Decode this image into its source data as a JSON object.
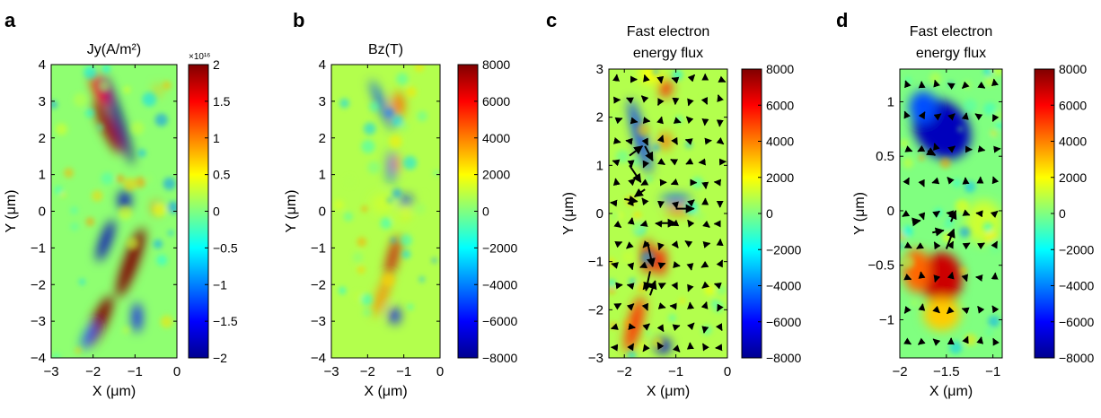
{
  "colorbar_colors": [
    "#00008f",
    "#0000ff",
    "#0080ff",
    "#00ffff",
    "#80ff80",
    "#ffff00",
    "#ff8000",
    "#ff0000",
    "#800000"
  ],
  "chart_data": [
    {
      "type": "heatmap",
      "panel_letter": "a",
      "title": "Jy(A/m²)",
      "xlabel": "X (μm)",
      "ylabel": "Y (μm)",
      "xlim": [
        -3,
        0
      ],
      "ylim": [
        -4,
        4
      ],
      "xticks": [
        "-3",
        "-2",
        "-1",
        "0"
      ],
      "yticks": [
        "-4",
        "-3",
        "-2",
        "-1",
        "0",
        "1",
        "2",
        "3",
        "4"
      ],
      "colorbar": {
        "exponent_label": "×10¹⁶",
        "range": [
          -2,
          2
        ],
        "ticks": [
          "-2",
          "-1.5",
          "-1",
          "-0.5",
          "0",
          "0.5",
          "1",
          "1.5",
          "2"
        ]
      },
      "features": [
        {
          "x": -1.6,
          "y": 2.5,
          "value": 1.5
        },
        {
          "x": -1.35,
          "y": 2.4,
          "value": -1.8
        },
        {
          "x": -1.15,
          "y": -1.5,
          "value": 1.8
        },
        {
          "x": -1.55,
          "y": -1.5,
          "value": -1.8
        },
        {
          "x": -2.0,
          "y": -3.3,
          "value": 1.8
        },
        {
          "x": -0.9,
          "y": -2.9,
          "value": -1.5
        }
      ]
    },
    {
      "type": "heatmap",
      "panel_letter": "b",
      "title": "Bz(T)",
      "xlabel": "X (μm)",
      "ylabel": "Y (μm)",
      "xlim": [
        -3,
        0
      ],
      "ylim": [
        -4,
        4
      ],
      "xticks": [
        "-3",
        "-2",
        "-1",
        "0"
      ],
      "yticks": [
        "-4",
        "-3",
        "-2",
        "-1",
        "0",
        "1",
        "2",
        "3",
        "4"
      ],
      "colorbar": {
        "range": [
          -8000,
          8000
        ],
        "ticks": [
          "-8000",
          "-6000",
          "-4000",
          "-2000",
          "0",
          "2000",
          "4000",
          "6000",
          "8000"
        ]
      },
      "features": [
        {
          "x": -1.55,
          "y": 2.5,
          "value": -4500
        },
        {
          "x": -1.1,
          "y": 2.8,
          "value": 4500
        },
        {
          "x": -1.2,
          "y": 1.3,
          "value": 4000
        },
        {
          "x": -0.95,
          "y": 0.3,
          "value": -5500
        },
        {
          "x": -1.35,
          "y": -1.3,
          "value": 6500
        },
        {
          "x": -1.25,
          "y": -2.8,
          "value": -6000
        }
      ]
    },
    {
      "type": "heatmap",
      "panel_letter": "c",
      "title": "Fast electron\nenergy flux",
      "xlabel": "X (μm)",
      "ylabel": "Y (μm)",
      "xlim": [
        -2.3,
        0
      ],
      "ylim": [
        -3,
        3
      ],
      "xticks": [
        "-2",
        "-1",
        "0"
      ],
      "yticks": [
        "-3",
        "-2",
        "-1",
        "0",
        "1",
        "2",
        "3"
      ],
      "colorbar": {
        "range": [
          -8000,
          8000
        ],
        "ticks": [
          "-8000",
          "-6000",
          "-4000",
          "-2000",
          "0",
          "2000",
          "4000",
          "6000",
          "8000"
        ]
      },
      "quiver": true,
      "features": [
        {
          "x": -1.6,
          "y": 1.7,
          "value": -5000
        },
        {
          "x": -1.2,
          "y": 2.6,
          "value": 5000
        },
        {
          "x": -1.1,
          "y": 0.3,
          "value": -5000
        },
        {
          "x": -1.4,
          "y": -1.1,
          "value": 6500
        },
        {
          "x": -1.25,
          "y": -2.75,
          "value": -6500
        }
      ]
    },
    {
      "type": "heatmap",
      "panel_letter": "d",
      "title": "Fast electron\nenergy flux",
      "xlabel": "X (μm)",
      "ylabel": "Y (μm)",
      "xlim": [
        -2,
        -0.9
      ],
      "ylim": [
        -1.35,
        1.3
      ],
      "xticks": [
        "-2",
        "-1.5",
        "-1"
      ],
      "yticks": [
        "-1",
        "-0.5",
        "0",
        "0.5",
        "1"
      ],
      "colorbar": {
        "range": [
          -8000,
          8000
        ],
        "ticks": [
          "-8000",
          "-6000",
          "-4000",
          "-2000",
          "0",
          "2000",
          "4000",
          "6000",
          "8000"
        ]
      },
      "quiver": true,
      "features": [
        {
          "x": -1.55,
          "y": 0.75,
          "value": -7000
        },
        {
          "x": -1.55,
          "y": -0.7,
          "value": 6500
        }
      ]
    }
  ]
}
